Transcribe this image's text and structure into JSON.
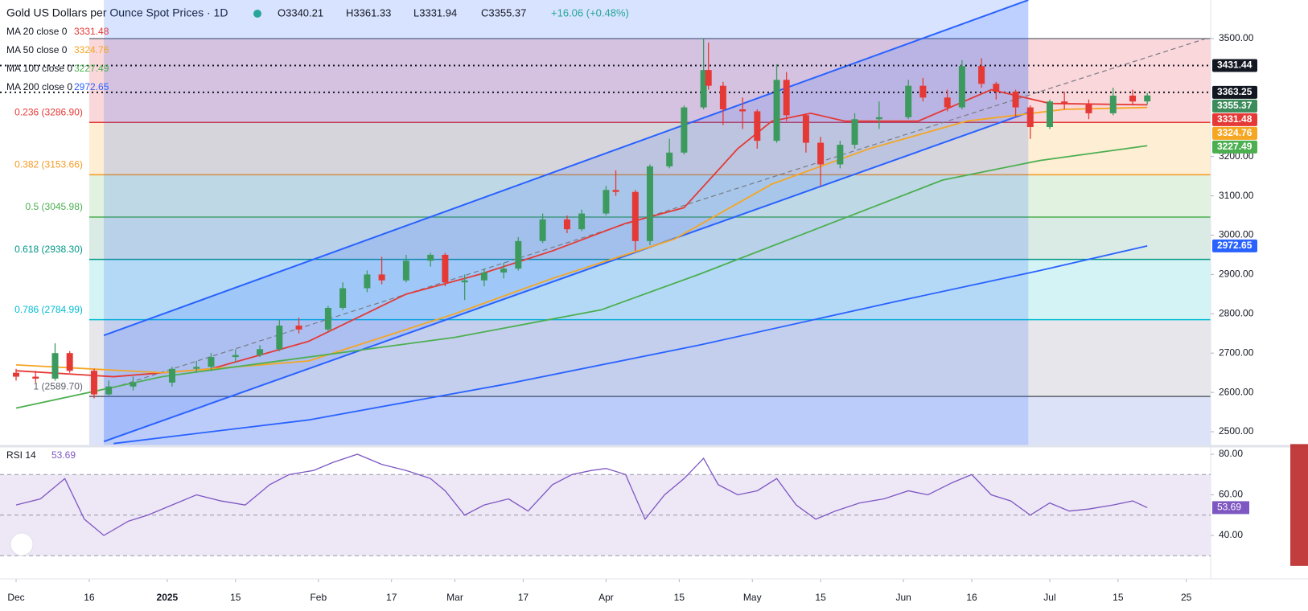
{
  "chart_data": {
    "type": "candlestick",
    "title": "Gold US Dollars per Ounce Spot Prices · 1D",
    "ohlc_labels": [
      "O3340.21",
      "H3361.33",
      "L3331.94",
      "C3355.37",
      "+16.06 (+0.48%)"
    ],
    "moving_averages": [
      {
        "name": "MA 20 close 0",
        "value": 3331.48,
        "color": "#e53935",
        "x": [
          0,
          20,
          40,
          60,
          80,
          95,
          110,
          125,
          137,
          148,
          155,
          163,
          170,
          185,
          200,
          212,
          232
        ],
        "values": [
          2655,
          2640,
          2660,
          2730,
          2850,
          2900,
          2960,
          3030,
          3070,
          3220,
          3290,
          3310,
          3290,
          3290,
          3370,
          3335,
          3331.48
        ]
      },
      {
        "name": "MA 50 close 0",
        "value": 3324.76,
        "color": "#f5a623",
        "x": [
          0,
          30,
          60,
          90,
          110,
          135,
          155,
          175,
          195,
          215,
          232
        ],
        "values": [
          2670,
          2650,
          2680,
          2800,
          2890,
          2990,
          3130,
          3220,
          3290,
          3320,
          3324.76
        ]
      },
      {
        "name": "MA 100 close 0",
        "value": 3227.49,
        "color": "#4caf50",
        "x": [
          0,
          30,
          60,
          90,
          120,
          140,
          165,
          190,
          210,
          232
        ],
        "values": [
          2560,
          2640,
          2690,
          2740,
          2810,
          2900,
          3020,
          3140,
          3190,
          3227.49
        ]
      },
      {
        "name": "MA 200 close 0",
        "value": 2972.65,
        "color": "#2962ff",
        "x": [
          20,
          60,
          100,
          140,
          180,
          210,
          232
        ],
        "values": [
          2470,
          2530,
          2620,
          2720,
          2830,
          2910,
          2972.65
        ]
      }
    ],
    "candles": [
      [
        0,
        2650,
        2660,
        2630,
        2640
      ],
      [
        4,
        2640,
        2655,
        2625,
        2635
      ],
      [
        8,
        2635,
        2725,
        2630,
        2700
      ],
      [
        11,
        2700,
        2705,
        2650,
        2655
      ],
      [
        16,
        2655,
        2660,
        2585,
        2595
      ],
      [
        19,
        2595,
        2630,
        2590,
        2615
      ],
      [
        24,
        2615,
        2640,
        2605,
        2625
      ],
      [
        32,
        2625,
        2665,
        2615,
        2660
      ],
      [
        37,
        2660,
        2680,
        2650,
        2665
      ],
      [
        40,
        2665,
        2700,
        2655,
        2690
      ],
      [
        45,
        2690,
        2710,
        2675,
        2695
      ],
      [
        50,
        2695,
        2720,
        2690,
        2710
      ],
      [
        54,
        2710,
        2785,
        2705,
        2770
      ],
      [
        58,
        2770,
        2790,
        2750,
        2760
      ],
      [
        64,
        2760,
        2820,
        2755,
        2815
      ],
      [
        67,
        2815,
        2880,
        2810,
        2865
      ],
      [
        72,
        2865,
        2910,
        2855,
        2900
      ],
      [
        75,
        2900,
        2945,
        2875,
        2885
      ],
      [
        80,
        2885,
        2950,
        2880,
        2935
      ],
      [
        85,
        2935,
        2955,
        2920,
        2950
      ],
      [
        88,
        2950,
        2955,
        2870,
        2880
      ],
      [
        92,
        2880,
        2900,
        2835,
        2885
      ],
      [
        96,
        2885,
        2915,
        2870,
        2905
      ],
      [
        100,
        2905,
        2930,
        2890,
        2915
      ],
      [
        103,
        2915,
        2995,
        2910,
        2985
      ],
      [
        108,
        2985,
        3055,
        2980,
        3040
      ],
      [
        113,
        3040,
        3050,
        3005,
        3015
      ],
      [
        116,
        3015,
        3065,
        3010,
        3055
      ],
      [
        121,
        3055,
        3125,
        3050,
        3115
      ],
      [
        123,
        3115,
        3165,
        3100,
        3110
      ],
      [
        127,
        3110,
        3115,
        2960,
        2985
      ],
      [
        130,
        2985,
        3180,
        2975,
        3175
      ],
      [
        134,
        3175,
        3245,
        3170,
        3210
      ],
      [
        137,
        3210,
        3330,
        3205,
        3325
      ],
      [
        141,
        3325,
        3500,
        3320,
        3420
      ],
      [
        142,
        3420,
        3490,
        3370,
        3380
      ],
      [
        145,
        3380,
        3390,
        3280,
        3320
      ],
      [
        149,
        3320,
        3350,
        3270,
        3315
      ],
      [
        152,
        3315,
        3320,
        3220,
        3240
      ],
      [
        156,
        3240,
        3435,
        3235,
        3395
      ],
      [
        158,
        3395,
        3415,
        3290,
        3305
      ],
      [
        162,
        3305,
        3310,
        3210,
        3235
      ],
      [
        165,
        3235,
        3250,
        3125,
        3180
      ],
      [
        169,
        3180,
        3240,
        3170,
        3230
      ],
      [
        172,
        3230,
        3310,
        3220,
        3295
      ],
      [
        177,
        3295,
        3340,
        3270,
        3300
      ],
      [
        183,
        3300,
        3395,
        3295,
        3380
      ],
      [
        186,
        3380,
        3400,
        3340,
        3350
      ],
      [
        191,
        3350,
        3370,
        3315,
        3325
      ],
      [
        194,
        3325,
        3445,
        3320,
        3430
      ],
      [
        198,
        3430,
        3450,
        3375,
        3385
      ],
      [
        201,
        3385,
        3390,
        3345,
        3365
      ],
      [
        205,
        3365,
        3370,
        3300,
        3325
      ],
      [
        208,
        3325,
        3330,
        3245,
        3275
      ],
      [
        212,
        3275,
        3345,
        3270,
        3340
      ],
      [
        215,
        3340,
        3365,
        3320,
        3335
      ],
      [
        220,
        3335,
        3345,
        3295,
        3310
      ],
      [
        225,
        3310,
        3375,
        3305,
        3355
      ],
      [
        229,
        3355,
        3370,
        3330,
        3340
      ],
      [
        232,
        3340.21,
        3361.33,
        3331.94,
        3355.37
      ]
    ],
    "up_color": "#3d9a5f",
    "down_color": "#e53935",
    "fib_start": 15,
    "fib_levels": [
      {
        "value": 3500,
        "color": "#787b86",
        "fill": "#f9d0d4"
      },
      {
        "value": 3286.9,
        "label": "0.236 (3286.90)",
        "color": "#e53935",
        "fill": "#fdebcc"
      },
      {
        "value": 3153.66,
        "label": "0.382 (3153.66)",
        "color": "#f59a23",
        "fill": "#dcf0dc"
      },
      {
        "value": 3045.98,
        "label": "0.5 (3045.98)",
        "color": "#4caf50",
        "fill": "#d4e6e1"
      },
      {
        "value": 2938.3,
        "label": "0.618 (2938.30)",
        "color": "#009688",
        "fill": "#cdf1f3"
      },
      {
        "value": 2784.99,
        "label": "0.786 (2784.99)",
        "color": "#00bcd4",
        "fill": "#e3e3e8"
      },
      {
        "value": 2589.7,
        "label": "1 (2589.70)",
        "color": "#5d606b",
        "fill": "#d6def8"
      }
    ],
    "channel": {
      "x": [
        18,
        207.6
      ],
      "upper": [
        2745,
        3598
      ],
      "lower": [
        2475,
        3312
      ],
      "mid_x": [
        20,
        244
      ],
      "mid": [
        2612,
        3500
      ],
      "color": "#2962ff"
    },
    "dotted_levels": [
      3431.44,
      3363.25
    ],
    "price_tags": [
      {
        "value": 3431.44,
        "color": "#131722"
      },
      {
        "value": 3363.25,
        "color": "#131722"
      },
      {
        "value": 3355.37,
        "color": "#3d8c5c"
      },
      {
        "value": 3331.48,
        "color": "#e53935"
      },
      {
        "value": 3324.76,
        "color": "#f5a623"
      },
      {
        "value": 3227.49,
        "color": "#4caf50"
      },
      {
        "value": 2972.65,
        "color": "#2962ff"
      }
    ],
    "xlim": [
      0,
      245
    ],
    "xticks": [
      {
        "value": 0,
        "label": "Dec"
      },
      {
        "value": 15,
        "label": "16"
      },
      {
        "value": 31,
        "label": "2025"
      },
      {
        "value": 45,
        "label": "15"
      },
      {
        "value": 62,
        "label": "Feb"
      },
      {
        "value": 77,
        "label": "17"
      },
      {
        "value": 90,
        "label": "Mar"
      },
      {
        "value": 104,
        "label": "17"
      },
      {
        "value": 121,
        "label": "Apr"
      },
      {
        "value": 136,
        "label": "15"
      },
      {
        "value": 151,
        "label": "May"
      },
      {
        "value": 165,
        "label": "15"
      },
      {
        "value": 182,
        "label": "Jun"
      },
      {
        "value": 196,
        "label": "16"
      },
      {
        "value": 212,
        "label": "Jul"
      },
      {
        "value": 226,
        "label": "15"
      },
      {
        "value": 240,
        "label": "25"
      }
    ],
    "ylim": [
      2480,
      3600
    ],
    "yticks": [
      {
        "value": 2500,
        "label": "2500.00"
      },
      {
        "value": 2600,
        "label": "2600.00"
      },
      {
        "value": 2700,
        "label": "2700.00"
      },
      {
        "value": 2800,
        "label": "2800.00"
      },
      {
        "value": 2900,
        "label": "2900.00"
      },
      {
        "value": 3000,
        "label": "3000.00"
      },
      {
        "value": 3100,
        "label": "3100.00"
      },
      {
        "value": 3200,
        "label": "3200.00"
      },
      {
        "value": 3500,
        "label": "3500.00"
      }
    ],
    "rsi": {
      "name": "RSI 14",
      "value": 53.69,
      "color": "#7e57c2",
      "ylim": [
        25,
        85
      ],
      "yticks": [
        {
          "value": 40,
          "label": "40.00"
        },
        {
          "value": 60,
          "label": "60.00"
        },
        {
          "value": 80,
          "label": "80.00"
        }
      ],
      "levels": [
        30,
        50,
        70
      ],
      "x": [
        0,
        5,
        10,
        14,
        18,
        23,
        27,
        32,
        37,
        42,
        47,
        52,
        56,
        61,
        65,
        70,
        75,
        80,
        85,
        88,
        92,
        96,
        101,
        105,
        110,
        114,
        118,
        121,
        125,
        129,
        133,
        137,
        141,
        144,
        148,
        152,
        156,
        160,
        164,
        168,
        173,
        178,
        183,
        187,
        192,
        196,
        200,
        204,
        208,
        212,
        216,
        220,
        225,
        229,
        232
      ],
      "values": [
        55,
        58,
        68,
        48,
        40,
        47,
        50,
        55,
        60,
        57,
        55,
        65,
        70,
        72,
        76,
        80,
        75,
        72,
        68,
        62,
        50,
        55,
        58,
        52,
        65,
        70,
        72,
        73,
        70,
        48,
        60,
        68,
        78,
        65,
        60,
        62,
        68,
        55,
        48,
        52,
        56,
        58,
        62,
        60,
        66,
        70,
        60,
        57,
        50,
        56,
        52,
        53,
        55,
        57,
        53.69
      ]
    }
  }
}
